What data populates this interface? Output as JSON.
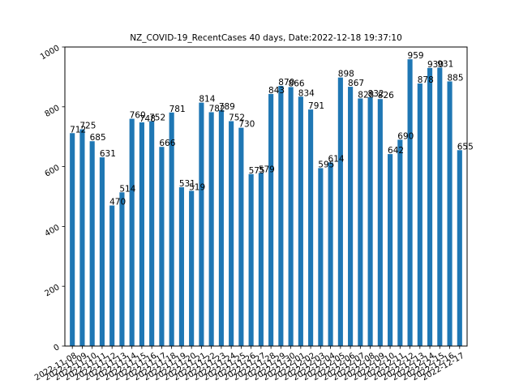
{
  "chart_data": {
    "type": "bar",
    "title": "NZ_COVID-19_RecentCases 40 days,  Date:2022-12-18 19:37:10",
    "xlabel": "",
    "ylabel": "",
    "ylim": [
      0,
      1000
    ],
    "yticks": [
      0,
      200,
      400,
      600,
      800,
      1000
    ],
    "grid": false,
    "bar_color": "#1f77b4",
    "categories": [
      "2022-11-08",
      "2022-11-09",
      "2022-11-10",
      "2022-11-11",
      "2022-11-12",
      "2022-11-13",
      "2022-11-14",
      "2022-11-15",
      "2022-11-16",
      "2022-11-17",
      "2022-11-18",
      "2022-11-19",
      "2022-11-20",
      "2022-11-21",
      "2022-11-22",
      "2022-11-23",
      "2022-11-24",
      "2022-11-25",
      "2022-11-26",
      "2022-11-27",
      "2022-11-28",
      "2022-11-29",
      "2022-11-30",
      "2022-12-01",
      "2022-12-02",
      "2022-12-03",
      "2022-12-04",
      "2022-12-05",
      "2022-12-06",
      "2022-12-07",
      "2022-12-08",
      "2022-12-09",
      "2022-12-10",
      "2022-12-11",
      "2022-12-12",
      "2022-12-13",
      "2022-12-14",
      "2022-12-15",
      "2022-12-16",
      "2022-12-17"
    ],
    "values": [
      712,
      725,
      685,
      631,
      470,
      514,
      760,
      748,
      752,
      666,
      781,
      531,
      519,
      814,
      782,
      789,
      752,
      730,
      575,
      579,
      843,
      870,
      866,
      834,
      791,
      595,
      614,
      898,
      867,
      828,
      832,
      826,
      642,
      690,
      959,
      878,
      930,
      931,
      885,
      655
    ]
  }
}
